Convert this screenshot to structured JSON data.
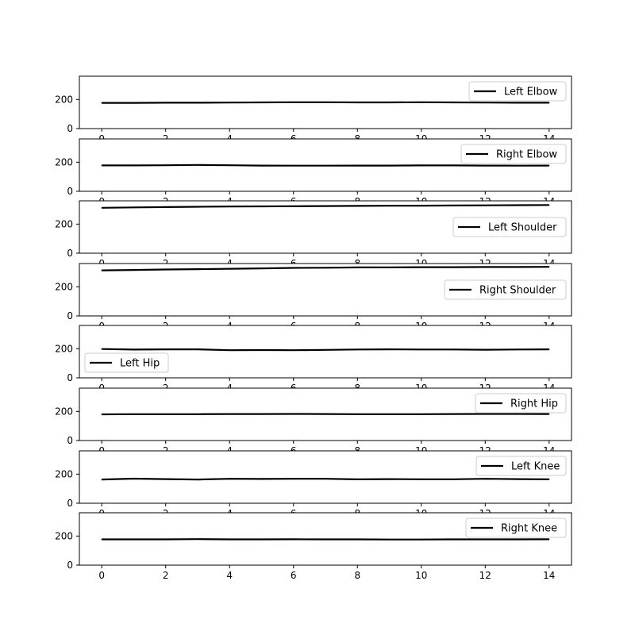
{
  "chart_data": [
    {
      "type": "line",
      "x": [
        0,
        1,
        2,
        3,
        4,
        5,
        6,
        7,
        8,
        9,
        10,
        11,
        12,
        13,
        14
      ],
      "series": [
        {
          "name": "Left Elbow",
          "values": [
            177,
            177,
            178,
            178,
            179,
            180,
            181,
            181,
            180,
            180,
            181,
            180,
            179,
            178,
            178
          ]
        }
      ],
      "xlim": [
        -0.7,
        14.7
      ],
      "ylim": [
        0,
        360
      ],
      "xticks": [
        0,
        2,
        4,
        6,
        8,
        10,
        12,
        14
      ],
      "yticks": [
        0,
        200
      ],
      "legend": "top-right",
      "grid": false
    },
    {
      "type": "line",
      "x": [
        0,
        1,
        2,
        3,
        4,
        5,
        6,
        7,
        8,
        9,
        10,
        11,
        12,
        13,
        14
      ],
      "series": [
        {
          "name": "Right Elbow",
          "values": [
            178,
            178,
            179,
            181,
            179,
            177,
            176,
            176,
            177,
            177,
            178,
            178,
            177,
            176,
            177
          ]
        }
      ],
      "xlim": [
        -0.7,
        14.7
      ],
      "ylim": [
        0,
        360
      ],
      "xticks": [
        0,
        2,
        4,
        6,
        8,
        10,
        12,
        14
      ],
      "yticks": [
        0,
        200
      ],
      "legend": "top-right",
      "grid": false
    },
    {
      "type": "line",
      "x": [
        0,
        1,
        2,
        3,
        4,
        5,
        6,
        7,
        8,
        9,
        10,
        11,
        12,
        13,
        14
      ],
      "series": [
        {
          "name": "Left Shoulder",
          "values": [
            312,
            315,
            317,
            319,
            321,
            322,
            323,
            324,
            325,
            326,
            327,
            328,
            329,
            330,
            331
          ]
        }
      ],
      "xlim": [
        -0.7,
        14.7
      ],
      "ylim": [
        0,
        360
      ],
      "xticks": [
        0,
        2,
        4,
        6,
        8,
        10,
        12,
        14
      ],
      "yticks": [
        0,
        200
      ],
      "legend": "right",
      "grid": false
    },
    {
      "type": "line",
      "x": [
        0,
        1,
        2,
        3,
        4,
        5,
        6,
        7,
        8,
        9,
        10,
        11,
        12,
        13,
        14
      ],
      "series": [
        {
          "name": "Right Shoulder",
          "values": [
            313,
            316,
            319,
            321,
            324,
            327,
            330,
            331,
            333,
            334,
            335,
            335,
            336,
            336,
            337
          ]
        }
      ],
      "xlim": [
        -0.7,
        14.7
      ],
      "ylim": [
        0,
        360
      ],
      "xticks": [
        0,
        2,
        4,
        6,
        8,
        10,
        12,
        14
      ],
      "yticks": [
        0,
        200
      ],
      "legend": "right",
      "grid": false
    },
    {
      "type": "line",
      "x": [
        0,
        1,
        2,
        3,
        4,
        5,
        6,
        7,
        8,
        9,
        10,
        11,
        12,
        13,
        14
      ],
      "series": [
        {
          "name": "Left Hip",
          "values": [
            198,
            194,
            196,
            196,
            190,
            191,
            190,
            192,
            195,
            196,
            195,
            195,
            193,
            195,
            196
          ]
        }
      ],
      "xlim": [
        -0.7,
        14.7
      ],
      "ylim": [
        0,
        360
      ],
      "xticks": [
        0,
        2,
        4,
        6,
        8,
        10,
        12,
        14
      ],
      "yticks": [
        0,
        200
      ],
      "legend": "lower-left",
      "grid": false
    },
    {
      "type": "line",
      "x": [
        0,
        1,
        2,
        3,
        4,
        5,
        6,
        7,
        8,
        9,
        10,
        11,
        12,
        13,
        14
      ],
      "series": [
        {
          "name": "Right Hip",
          "values": [
            180,
            181,
            181,
            181,
            182,
            182,
            183,
            182,
            181,
            181,
            181,
            182,
            183,
            183,
            182
          ]
        }
      ],
      "xlim": [
        -0.7,
        14.7
      ],
      "ylim": [
        0,
        360
      ],
      "xticks": [
        0,
        2,
        4,
        6,
        8,
        10,
        12,
        14
      ],
      "yticks": [
        0,
        200
      ],
      "legend": "top-right",
      "grid": false
    },
    {
      "type": "line",
      "x": [
        0,
        1,
        2,
        3,
        4,
        5,
        6,
        7,
        8,
        9,
        10,
        11,
        12,
        13,
        14
      ],
      "series": [
        {
          "name": "Left Knee",
          "values": [
            163,
            169,
            166,
            163,
            168,
            167,
            168,
            168,
            164,
            166,
            165,
            165,
            168,
            166,
            165
          ]
        }
      ],
      "xlim": [
        -0.7,
        14.7
      ],
      "ylim": [
        0,
        360
      ],
      "xticks": [
        0,
        2,
        4,
        6,
        8,
        10,
        12,
        14
      ],
      "yticks": [
        0,
        200
      ],
      "legend": "top-right",
      "grid": false
    },
    {
      "type": "line",
      "x": [
        0,
        1,
        2,
        3,
        4,
        5,
        6,
        7,
        8,
        9,
        10,
        11,
        12,
        13,
        14
      ],
      "series": [
        {
          "name": "Right Knee",
          "values": [
            177,
            177,
            177,
            179,
            177,
            177,
            178,
            177,
            177,
            176,
            176,
            177,
            177,
            177,
            178
          ]
        }
      ],
      "xlim": [
        -0.7,
        14.7
      ],
      "ylim": [
        0,
        360
      ],
      "xticks": [
        0,
        2,
        4,
        6,
        8,
        10,
        12,
        14
      ],
      "yticks": [
        0,
        200
      ],
      "legend": "top-right",
      "grid": false
    }
  ],
  "colors": {
    "line": "#000000",
    "axes": "#000000",
    "legend_border": "#cccccc",
    "background": "#ffffff"
  }
}
